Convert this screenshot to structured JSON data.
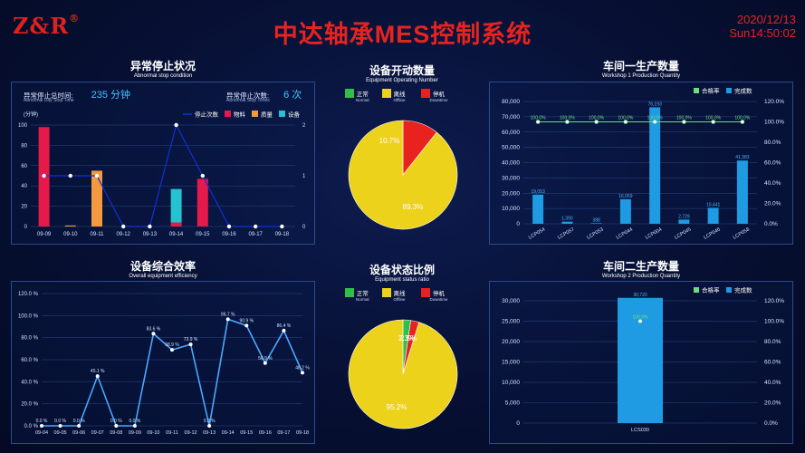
{
  "header": {
    "logo": "Z&R",
    "logo_mark": "®",
    "title": "中达轴承MES控制系统",
    "date": "2020/12/13",
    "time": "Sun14:50:02"
  },
  "stop_panel": {
    "title": "异常停止状况",
    "subtitle": "Abnormal stop condition",
    "day_time_label": "异常停止总时间:",
    "day_time_sub": "Abnormal Day Stop Time",
    "day_time_value": "235 分钟",
    "times_label": "异常停止次数:",
    "times_sub": "Abnormal Stop Times",
    "times_value": "6 次",
    "unit_label": "(分钟)"
  },
  "open_panel": {
    "title": "设备开动数量",
    "subtitle": "Equipment Operating Number",
    "legend": [
      {
        "label": "正常",
        "sub": "Normal",
        "color": "#2fbf4a"
      },
      {
        "label": "离线",
        "sub": "Offline",
        "color": "#ecd21a"
      },
      {
        "label": "停机",
        "sub": "Downtime",
        "color": "#e8231f"
      }
    ]
  },
  "ws1_panel": {
    "title": "车间一生产数量",
    "subtitle": "Workshop 1 Production Quantity"
  },
  "oee_panel": {
    "title": "设备综合效率",
    "subtitle": "Overall equipment efficiency"
  },
  "ratio_panel": {
    "title": "设备状态比例",
    "subtitle": "Equipment status ratio",
    "legend": [
      {
        "label": "正常",
        "sub": "Normal",
        "color": "#2fbf4a"
      },
      {
        "label": "离线",
        "sub": "Offline",
        "color": "#ecd21a"
      },
      {
        "label": "停机",
        "sub": "Downtime",
        "color": "#e8231f"
      }
    ]
  },
  "ws2_panel": {
    "title": "车间二生产数量",
    "subtitle": "Workshop 2 Production Quantity"
  },
  "chart_data": [
    {
      "id": "stop",
      "type": "bar",
      "categories": [
        "09-09",
        "09-10",
        "09-11",
        "09-12",
        "09-13",
        "09-14",
        "09-15",
        "09-16",
        "09-17",
        "09-18"
      ],
      "series": [
        {
          "name": "停止次数",
          "kind": "line",
          "axis": "right",
          "color": "#1230d8",
          "values": [
            1,
            1,
            1,
            0,
            0,
            2,
            1,
            0,
            0,
            0
          ]
        },
        {
          "name": "物料",
          "kind": "bar",
          "color": "#e5194a",
          "values": [
            98,
            0,
            0,
            0,
            0,
            4,
            47,
            0,
            0,
            0
          ]
        },
        {
          "name": "质量",
          "kind": "bar",
          "color": "#f29a3d",
          "values": [
            0,
            1,
            55,
            0,
            0,
            0,
            0,
            0,
            0,
            0
          ]
        },
        {
          "name": "设备",
          "kind": "bar",
          "color": "#27c2d0",
          "values": [
            0,
            0,
            0,
            0,
            0,
            33,
            0,
            0,
            0,
            0
          ]
        }
      ],
      "ylim": [
        0,
        100
      ],
      "yticks": [
        0,
        20,
        40,
        60,
        80,
        100
      ],
      "y2lim": [
        0,
        2
      ],
      "y2ticks": [
        0,
        1,
        2
      ],
      "ylabel": "(分钟)",
      "legend_position": "top-right"
    },
    {
      "id": "open",
      "type": "pie",
      "labels": [
        "正常",
        "离线",
        "停机"
      ],
      "values": [
        0,
        89.3,
        10.7
      ],
      "colors": [
        "#2fbf4a",
        "#ecd21a",
        "#e8231f"
      ],
      "data_labels": [
        "",
        "89.3%",
        "10.7%"
      ]
    },
    {
      "id": "ws1",
      "type": "bar",
      "categories": [
        "LCP054",
        "LCP057",
        "LCP053",
        "LCP044",
        "LCP004",
        "LCP045",
        "LCP046",
        "LCP058"
      ],
      "series": [
        {
          "name": "合格率",
          "kind": "line",
          "axis": "right",
          "color": "#6be07a",
          "values": [
            100,
            100,
            100,
            100,
            100,
            100,
            100,
            100
          ],
          "data_labels": [
            "100.0%",
            "100.0%",
            "100.0%",
            "100.0%",
            "100.0%",
            "100.0%",
            "100.0%",
            "100.0%"
          ]
        },
        {
          "name": "完成数",
          "kind": "bar",
          "color": "#1e9be3",
          "values": [
            19053,
            1390,
            388,
            16059,
            76193,
            2729,
            10441,
            41383
          ],
          "data_labels": [
            "19,053",
            "1,390",
            "388",
            "16,059",
            "76,193",
            "2,729",
            "10,441",
            "41,383"
          ]
        }
      ],
      "ylim": [
        0,
        80000
      ],
      "yticks": [
        "0",
        "10,000",
        "20,000",
        "30,000",
        "40,000",
        "50,000",
        "60,000",
        "70,000",
        "80,000"
      ],
      "y2lim": [
        0,
        120
      ],
      "y2ticks": [
        "0.0%",
        "20.0%",
        "40.0%",
        "60.0%",
        "80.0%",
        "100.0%",
        "120.0%"
      ],
      "legend_position": "top-right"
    },
    {
      "id": "oee",
      "type": "line",
      "categories": [
        "09-04",
        "09-05",
        "09-06",
        "09-07",
        "09-08",
        "09-09",
        "09-10",
        "09-11",
        "09-12",
        "09-13",
        "09-14",
        "09-15",
        "09-16",
        "09-17",
        "09-18"
      ],
      "series": [
        {
          "name": "",
          "color": "#4aa8ff",
          "values": [
            0,
            0,
            0,
            45.1,
            0,
            0,
            83.6,
            68.9,
            73.9,
            0,
            96.7,
            90.9,
            56.9,
            86.4,
            48.2
          ],
          "data_labels": [
            "0.0 %",
            "0.0 %",
            "0.0 %",
            "45.1 %",
            "0.0 %",
            "0.0 %",
            "83.6 %",
            "68.9 %",
            "73.9 %",
            "0.0 %",
            "96.7 %",
            "90.9 %",
            "56.9 %",
            "86.4 %",
            "48.2 %"
          ]
        }
      ],
      "ylim": [
        0,
        120
      ],
      "yticks": [
        "0.0 %",
        "20.0 %",
        "40.0 %",
        "60.0 %",
        "80.0 %",
        "100.0 %",
        "120.0 %"
      ]
    },
    {
      "id": "ratio",
      "type": "pie",
      "labels": [
        "正常",
        "离线",
        "停机"
      ],
      "values": [
        2.3,
        95.2,
        2.5
      ],
      "colors": [
        "#2fbf4a",
        "#ecd21a",
        "#e8231f"
      ],
      "data_labels": [
        "2.3%",
        "95.2%",
        "2.5%"
      ]
    },
    {
      "id": "ws2",
      "type": "bar",
      "categories": [
        "LCS030"
      ],
      "series": [
        {
          "name": "合格率",
          "kind": "line",
          "axis": "right",
          "color": "#6be07a",
          "values": [
            100
          ],
          "data_labels": [
            "100.0%"
          ]
        },
        {
          "name": "完成数",
          "kind": "bar",
          "color": "#1e9be3",
          "values": [
            30720
          ],
          "data_labels": [
            "30,720"
          ]
        }
      ],
      "ylim": [
        0,
        30000
      ],
      "yticks": [
        "0",
        "5,000",
        "10,000",
        "15,000",
        "20,000",
        "25,000",
        "30,000"
      ],
      "y2lim": [
        0,
        120
      ],
      "y2ticks": [
        "0.0%",
        "20.0%",
        "40.0%",
        "60.0%",
        "80.0%",
        "100.0%",
        "120.0%"
      ],
      "legend_position": "top-right"
    }
  ]
}
